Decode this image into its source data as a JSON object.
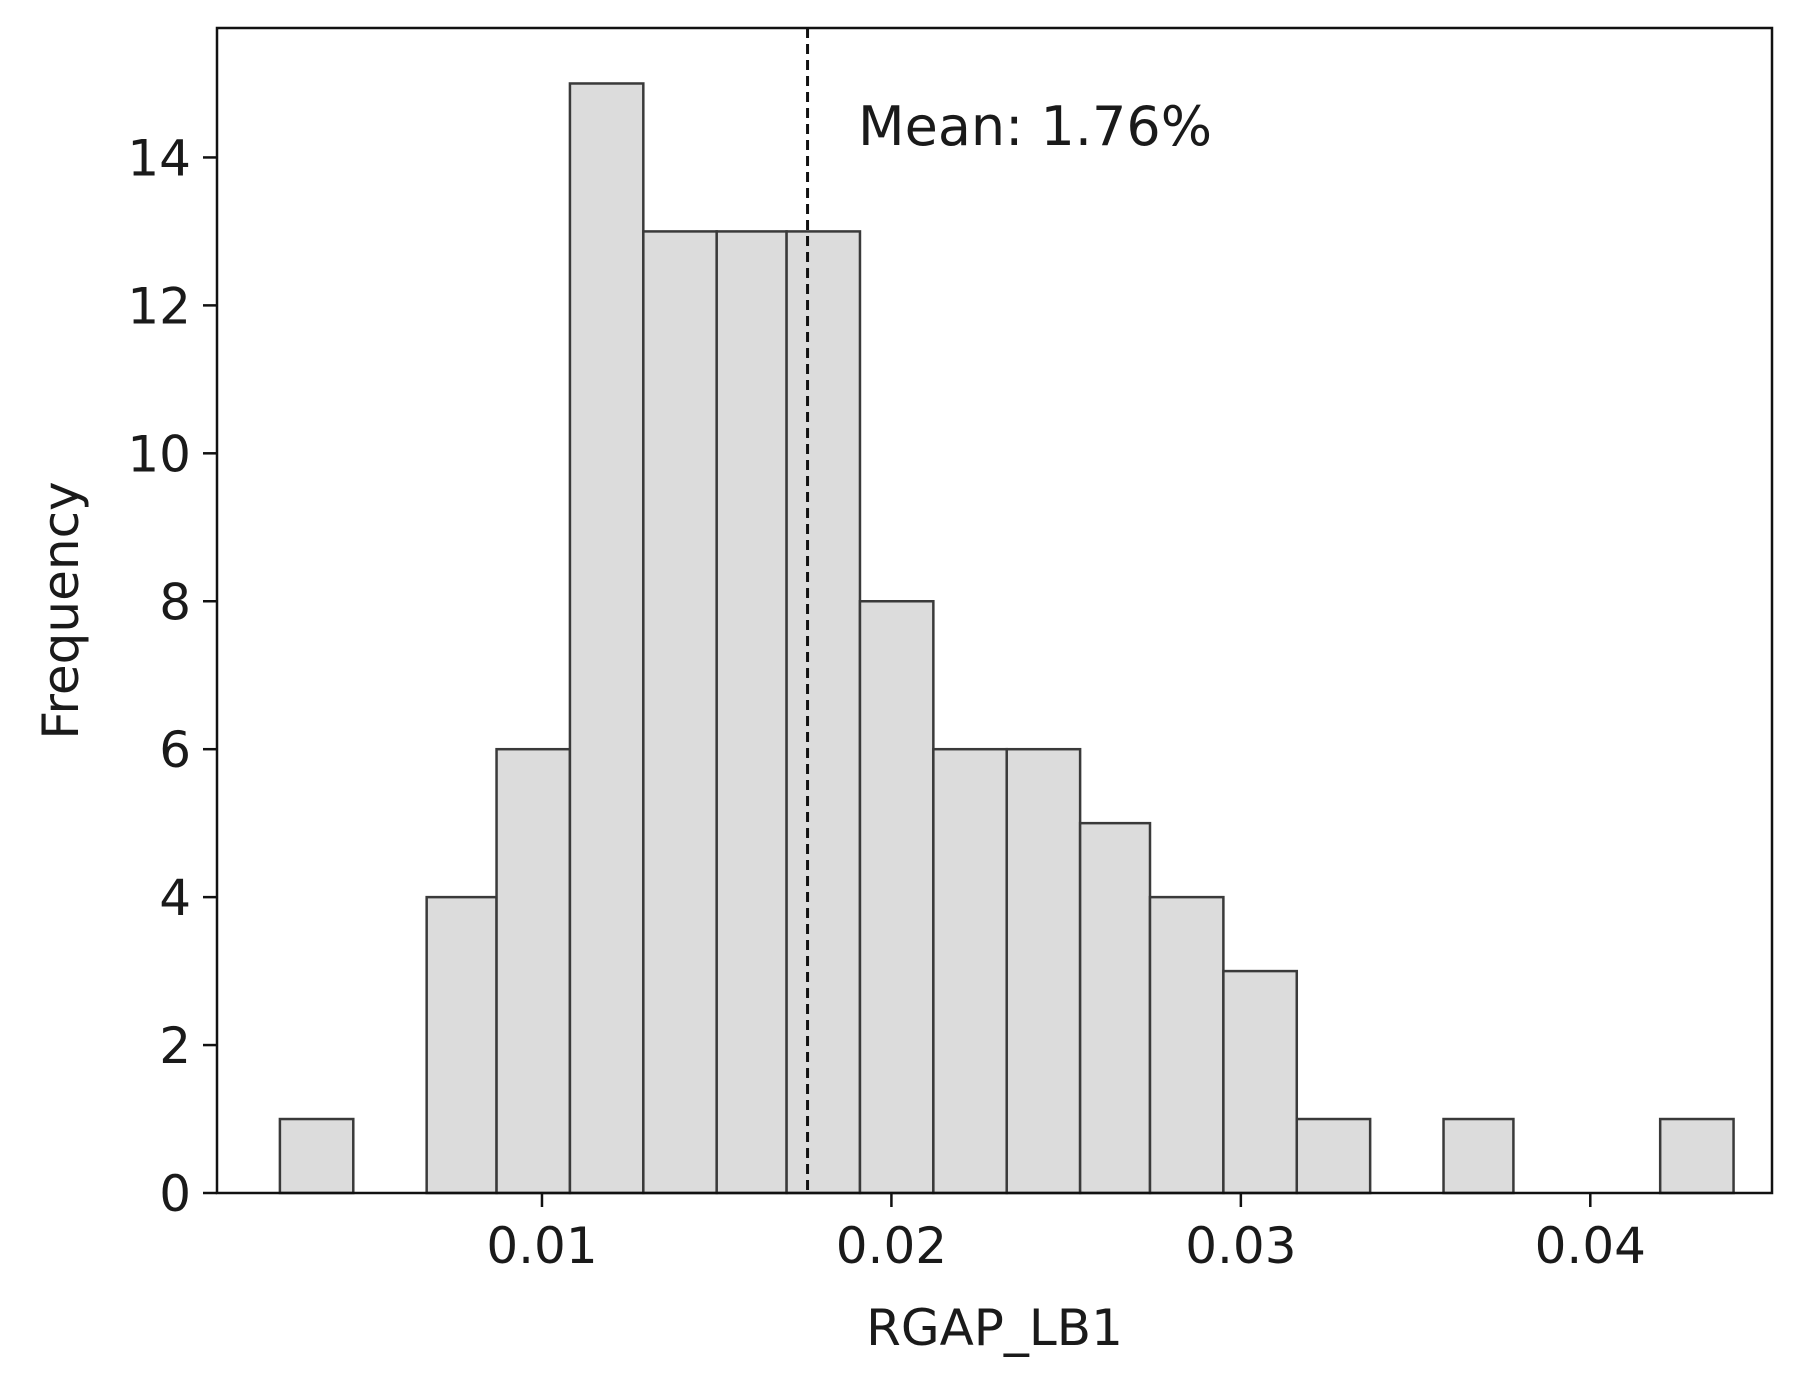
{
  "chart_data": {
    "type": "bar",
    "title": "",
    "xlabel": "RGAP_LB1",
    "ylabel": "Frequency",
    "xlim": [
      0.0007,
      0.0452
    ],
    "ylim": [
      0,
      15.75
    ],
    "xticks": [
      0.01,
      0.02,
      0.03,
      0.04
    ],
    "xtick_labels": [
      "0.01",
      "0.02",
      "0.03",
      "0.04"
    ],
    "yticks": [
      0,
      2,
      4,
      6,
      8,
      10,
      12,
      14
    ],
    "ytick_labels": [
      "0",
      "2",
      "4",
      "6",
      "8",
      "10",
      "12",
      "14"
    ],
    "grid": false,
    "bins": [
      {
        "x0": 0.0025,
        "x1": 0.0046,
        "count": 1
      },
      {
        "x0": 0.0046,
        "x1": 0.0067,
        "count": 0
      },
      {
        "x0": 0.0067,
        "x1": 0.0087,
        "count": 4
      },
      {
        "x0": 0.0087,
        "x1": 0.0108,
        "count": 6
      },
      {
        "x0": 0.0108,
        "x1": 0.0129,
        "count": 15
      },
      {
        "x0": 0.0129,
        "x1": 0.015,
        "count": 13
      },
      {
        "x0": 0.015,
        "x1": 0.017,
        "count": 13
      },
      {
        "x0": 0.017,
        "x1": 0.0191,
        "count": 13
      },
      {
        "x0": 0.0191,
        "x1": 0.0212,
        "count": 8
      },
      {
        "x0": 0.0212,
        "x1": 0.0233,
        "count": 6
      },
      {
        "x0": 0.0233,
        "x1": 0.0254,
        "count": 6
      },
      {
        "x0": 0.0254,
        "x1": 0.0274,
        "count": 5
      },
      {
        "x0": 0.0274,
        "x1": 0.0295,
        "count": 4
      },
      {
        "x0": 0.0295,
        "x1": 0.0316,
        "count": 3
      },
      {
        "x0": 0.0316,
        "x1": 0.0337,
        "count": 1
      },
      {
        "x0": 0.0337,
        "x1": 0.0358,
        "count": 0
      },
      {
        "x0": 0.0358,
        "x1": 0.0378,
        "count": 1
      },
      {
        "x0": 0.0378,
        "x1": 0.0399,
        "count": 0
      },
      {
        "x0": 0.0399,
        "x1": 0.042,
        "count": 0
      },
      {
        "x0": 0.042,
        "x1": 0.0441,
        "count": 1
      }
    ],
    "mean_line": {
      "x": 0.0176,
      "style": "dashed",
      "label": "Mean: 1.76%"
    },
    "colors": {
      "bar_fill": "#dcdcdc",
      "bar_edge": "#3a3a3a",
      "axis": "#111111",
      "mean_line": "#111111"
    }
  }
}
